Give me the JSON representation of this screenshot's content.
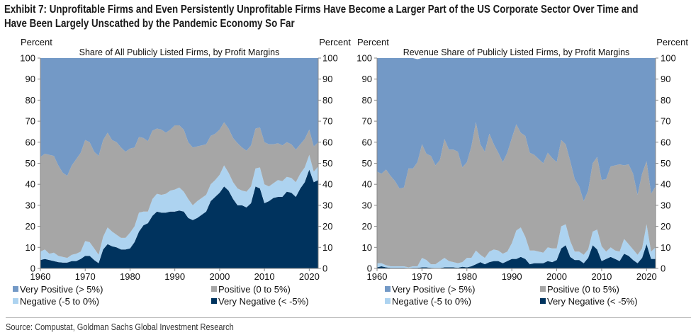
{
  "title_line1": "Exhibit 7: Unprofitable Firms and Even Persistently Unprofitable Firms Have Become a Larger Part of the US Corporate Sector Over Time and",
  "title_line2": "Have Been Largely Unscathed by the Pandemic Economy So Far",
  "source": "Source: Compustat, Goldman Sachs Global Investment Research",
  "colors": {
    "very_positive": "#7399C6",
    "positive": "#A6A6A6",
    "negative": "#ADD3F0",
    "very_negative": "#00335E"
  },
  "chart_data": [
    {
      "type": "area",
      "stacked": true,
      "title": "Share of All Publicly Listed Firms, by Profit Margins",
      "ylabel_left": "Percent",
      "ylabel_right": "Percent",
      "ylim": [
        0,
        100
      ],
      "yticks": [
        "0",
        "10",
        "20",
        "30",
        "40",
        "50",
        "60",
        "70",
        "80",
        "90",
        "100"
      ],
      "xticks": [
        "1960",
        "1970",
        "1980",
        "1990",
        "2000",
        "2010",
        "2020"
      ],
      "x_start": 1960,
      "x_end": 2022,
      "legend": [
        "Very Positive (> 5%)",
        "Positive (0 to 5%)",
        "Negative (-5 to 0%)",
        "Very Negative (< -5%)"
      ],
      "legend_position": "bottom",
      "series": [
        {
          "name": "Very Negative (< -5%)",
          "key": "very_negative",
          "values": [
            4,
            4.5,
            4,
            3.5,
            3,
            2.8,
            2.8,
            3.5,
            3.5,
            4.5,
            6,
            6,
            4,
            2.5,
            9,
            11.5,
            10.5,
            10,
            9,
            9,
            9.5,
            12.5,
            17.5,
            20.5,
            21.5,
            25,
            27,
            26.5,
            26.5,
            27,
            27,
            27.5,
            27,
            24,
            23,
            24,
            25.5,
            27,
            32,
            34,
            36,
            39,
            37,
            33,
            30,
            30,
            29,
            31,
            39,
            38,
            31,
            32,
            33.5,
            34,
            34,
            36.5,
            36,
            34,
            38,
            41,
            47,
            41,
            42
          ]
        },
        {
          "name": "Negative (-5 to 0%)",
          "key": "negative",
          "values": [
            4,
            4.5,
            3,
            4,
            3,
            2.7,
            2.2,
            3,
            3.5,
            3.5,
            7,
            6.5,
            5.5,
            4,
            6,
            8,
            7,
            6,
            5.5,
            5.5,
            7.5,
            7.5,
            9,
            6.5,
            5.5,
            8,
            8.5,
            8.5,
            9,
            10,
            10.5,
            11,
            9.5,
            9,
            7,
            8,
            8,
            8,
            8,
            8,
            8.5,
            10,
            8.5,
            8,
            8,
            7,
            7.5,
            8,
            8.5,
            10,
            9,
            7,
            7,
            8,
            7.5,
            7,
            7,
            7,
            7,
            7,
            7,
            5,
            6.5
          ]
        },
        {
          "name": "Positive (0 to 5%)",
          "key": "positive",
          "values": [
            45,
            45.5,
            47,
            46,
            43,
            40,
            39,
            42.5,
            45,
            47,
            48,
            47.5,
            46,
            47,
            46,
            45,
            43.5,
            44,
            43,
            41,
            40,
            37.5,
            36,
            35,
            33.5,
            32.5,
            31,
            31,
            29,
            29,
            30.5,
            29.5,
            29.5,
            27,
            27.5,
            26,
            25,
            24,
            23,
            22,
            21.5,
            20.5,
            21,
            21,
            21.5,
            20.5,
            19.5,
            19.5,
            19,
            19,
            20,
            20,
            18.5,
            17.5,
            17,
            16.5,
            16,
            15.5,
            14,
            13.5,
            12,
            12,
            11.5
          ]
        },
        {
          "name": "Very Positive (> 5%)",
          "key": "very_positive",
          "values": [
            47,
            45.5,
            46,
            46.5,
            51,
            54.5,
            56,
            51,
            48,
            45,
            39,
            40,
            44.5,
            46.5,
            39,
            35.5,
            39,
            40,
            42.5,
            44.5,
            43,
            42.5,
            37.5,
            38,
            39.5,
            34.5,
            33.5,
            34,
            35.5,
            34,
            32,
            32,
            34,
            40,
            42.5,
            42,
            41.5,
            41,
            37,
            36,
            34,
            30.5,
            33.5,
            38,
            40.5,
            42.5,
            44,
            41.5,
            33.5,
            33,
            40,
            41,
            41,
            40.5,
            41.5,
            40,
            41,
            43.5,
            41,
            38.5,
            34,
            42,
            40
          ]
        }
      ]
    },
    {
      "type": "area",
      "stacked": true,
      "title": "Revenue Share of Publicly Listed Firms, by Profit Margins",
      "ylabel_left": "Percent",
      "ylabel_right": "Percent",
      "ylim": [
        0,
        100
      ],
      "yticks": [
        "0",
        "10",
        "20",
        "30",
        "40",
        "50",
        "60",
        "70",
        "80",
        "90",
        "100"
      ],
      "xticks": [
        "1960",
        "1970",
        "1980",
        "1990",
        "2000",
        "2010",
        "2020"
      ],
      "x_start": 1960,
      "x_end": 2022,
      "legend": [
        "Very Positive (> 5%)",
        "Positive (0 to 5%)",
        "Negative (-5 to 0%)",
        "Very Negative (< -5%)"
      ],
      "legend_position": "bottom",
      "series": [
        {
          "name": "Very Negative (< -5%)",
          "key": "very_negative",
          "values": [
            0.5,
            1,
            0.5,
            0.3,
            0.3,
            0.3,
            0.3,
            0.2,
            0.3,
            0.3,
            0.5,
            0.5,
            0.3,
            0.2,
            0.2,
            0.5,
            0.5,
            0.5,
            0.3,
            0.8,
            0.5,
            1,
            2,
            3,
            2,
            3,
            3.5,
            3.5,
            2.5,
            3.5,
            4.5,
            4.5,
            5.5,
            4.5,
            2,
            2.5,
            2.5,
            2.5,
            3.5,
            3,
            4,
            9.5,
            11,
            5.5,
            4,
            4,
            2.5,
            5,
            11,
            9,
            3.5,
            4.5,
            5.5,
            4.5,
            3.5,
            7,
            6,
            4,
            2.5,
            5,
            11.5,
            4.5,
            4.5
          ]
        },
        {
          "name": "Negative (-5 to 0%)",
          "key": "negative",
          "values": [
            2,
            1.5,
            1,
            0.7,
            0.7,
            0.7,
            0.7,
            0.3,
            0.7,
            0.7,
            4.5,
            3.5,
            1.7,
            1.8,
            3.3,
            4.5,
            3,
            2.5,
            2.2,
            2.2,
            4.5,
            4,
            6.5,
            3.5,
            3,
            5,
            5.5,
            5,
            4.5,
            4.5,
            7.5,
            13.5,
            14,
            10.5,
            6.5,
            6,
            5.5,
            5,
            6.5,
            6.5,
            5.5,
            10.5,
            10,
            7.5,
            4,
            4,
            4,
            4,
            6.5,
            9.5,
            7,
            3.5,
            4.5,
            4,
            4.5,
            7,
            5.5,
            5,
            4,
            4.5,
            9.5,
            3.5,
            5.5
          ]
        },
        {
          "name": "Positive (0 to 5%)",
          "key": "positive",
          "values": [
            43.5,
            42.5,
            45.5,
            43,
            40.5,
            37,
            37.5,
            47,
            46.5,
            49.5,
            54,
            50.5,
            51.5,
            47,
            48,
            56.5,
            53,
            53.5,
            53,
            45,
            45.5,
            53,
            61,
            52.5,
            50.5,
            56,
            50,
            46.5,
            43.5,
            47,
            50,
            50.5,
            45,
            48,
            46.5,
            45.5,
            44,
            42.5,
            45,
            43,
            41,
            41,
            38,
            38,
            34.5,
            31,
            25.5,
            28,
            32.5,
            34.5,
            31.5,
            34.5,
            38.5,
            40.5,
            41.5,
            35,
            38,
            36,
            28.5,
            35.5,
            30,
            27.5,
            29
          ]
        },
        {
          "name": "Very Positive (> 5%)",
          "key": "very_positive",
          "values": [
            54,
            55,
            53,
            56,
            58.5,
            62,
            61.5,
            52.5,
            52.5,
            49,
            41,
            45.5,
            46.5,
            51,
            48.5,
            38.5,
            43.5,
            43.5,
            44.5,
            52,
            49.5,
            42,
            30.5,
            41,
            44.5,
            36,
            41,
            45,
            49.5,
            45,
            38,
            31.5,
            35.5,
            37,
            45,
            46,
            48,
            50,
            45,
            47.5,
            49.5,
            39,
            41,
            49,
            57.5,
            61,
            68,
            63,
            50,
            47,
            58,
            57.5,
            51.5,
            51,
            50.5,
            51,
            50.5,
            55,
            65,
            55,
            49,
            64.5,
            61
          ]
        }
      ]
    }
  ]
}
